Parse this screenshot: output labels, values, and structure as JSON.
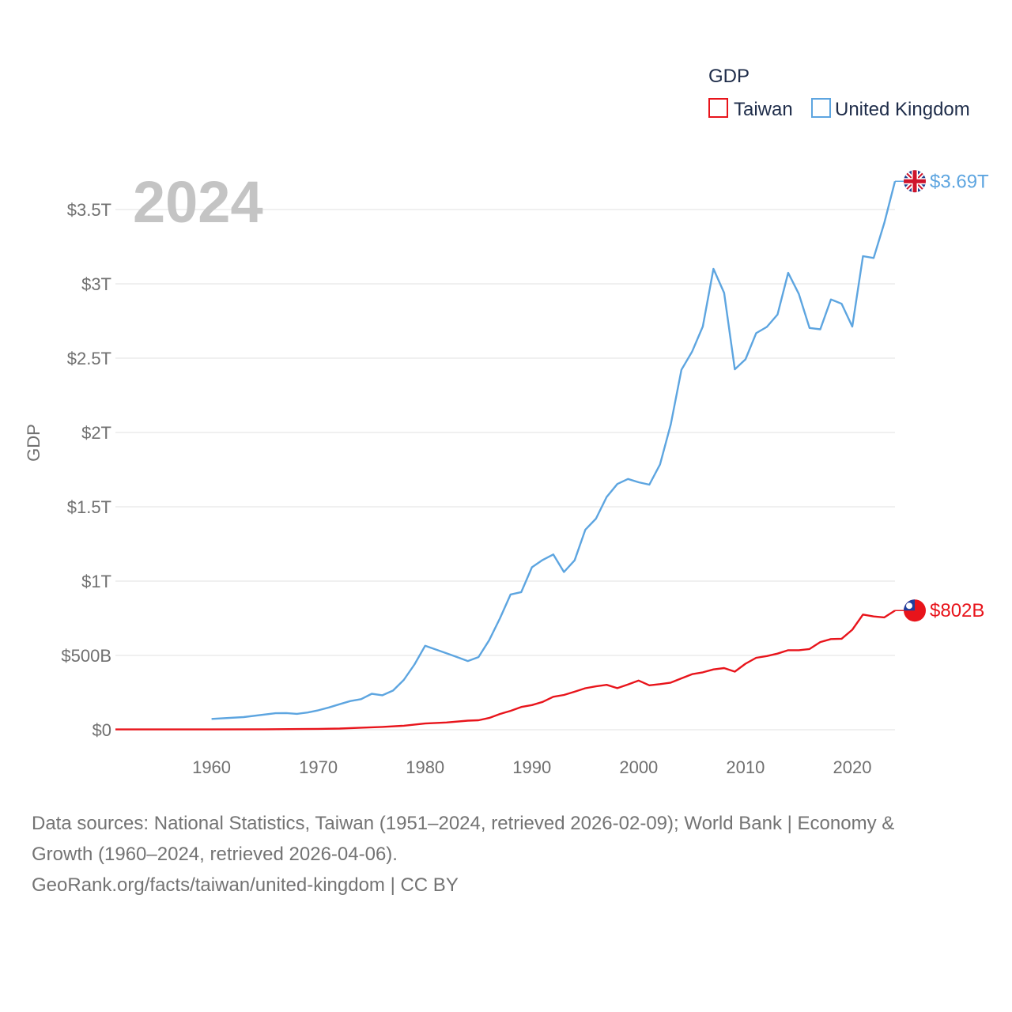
{
  "chart_data": {
    "type": "line",
    "title": "",
    "ylabel": "GDP",
    "xlabel": "",
    "year_label": "2024",
    "legend_title": "GDP",
    "legend_position": "top-right",
    "xlim": [
      1951,
      2024
    ],
    "ylim": [
      0,
      3.5
    ],
    "y_unit": "trillion USD",
    "y_ticks": [
      {
        "value": 0,
        "label": "$0"
      },
      {
        "value": 0.5,
        "label": "$500B"
      },
      {
        "value": 1,
        "label": "$1T"
      },
      {
        "value": 1.5,
        "label": "$1.5T"
      },
      {
        "value": 2,
        "label": "$2T"
      },
      {
        "value": 2.5,
        "label": "$2.5T"
      },
      {
        "value": 3,
        "label": "$3T"
      },
      {
        "value": 3.5,
        "label": "$3.5T"
      }
    ],
    "x_ticks": [
      {
        "value": 1960,
        "label": "1960"
      },
      {
        "value": 1970,
        "label": "1970"
      },
      {
        "value": 1980,
        "label": "1980"
      },
      {
        "value": 1990,
        "label": "1990"
      },
      {
        "value": 2000,
        "label": "2000"
      },
      {
        "value": 2010,
        "label": "2010"
      },
      {
        "value": 2020,
        "label": "2020"
      }
    ],
    "grid": true,
    "series": [
      {
        "name": "Taiwan",
        "color": "#e8141b",
        "end_label": "$802B",
        "flag_icon": "taiwan-flag-icon",
        "x": [
          1951,
          1955,
          1960,
          1965,
          1970,
          1972,
          1974,
          1976,
          1978,
          1980,
          1982,
          1984,
          1985,
          1986,
          1987,
          1988,
          1989,
          1990,
          1991,
          1992,
          1993,
          1994,
          1995,
          1996,
          1997,
          1998,
          1999,
          2000,
          2001,
          2002,
          2003,
          2004,
          2005,
          2006,
          2007,
          2008,
          2009,
          2010,
          2011,
          2012,
          2013,
          2014,
          2015,
          2016,
          2017,
          2018,
          2019,
          2020,
          2021,
          2022,
          2023,
          2024
        ],
        "y": [
          0.002,
          0.002,
          0.002,
          0.003,
          0.006,
          0.008,
          0.014,
          0.019,
          0.027,
          0.042,
          0.049,
          0.061,
          0.064,
          0.079,
          0.106,
          0.127,
          0.153,
          0.166,
          0.187,
          0.222,
          0.234,
          0.256,
          0.279,
          0.292,
          0.302,
          0.28,
          0.305,
          0.331,
          0.299,
          0.307,
          0.317,
          0.346,
          0.374,
          0.386,
          0.406,
          0.415,
          0.391,
          0.444,
          0.484,
          0.496,
          0.512,
          0.535,
          0.535,
          0.543,
          0.59,
          0.61,
          0.612,
          0.673,
          0.775,
          0.762,
          0.756,
          0.802
        ]
      },
      {
        "name": "United Kingdom",
        "color": "#5da5e0",
        "end_label": "$3.69T",
        "flag_icon": "uk-flag-icon",
        "x": [
          1960,
          1963,
          1966,
          1967,
          1968,
          1969,
          1970,
          1971,
          1972,
          1973,
          1974,
          1975,
          1976,
          1977,
          1978,
          1979,
          1980,
          1981,
          1982,
          1983,
          1984,
          1985,
          1986,
          1987,
          1988,
          1989,
          1990,
          1991,
          1992,
          1993,
          1994,
          1995,
          1996,
          1997,
          1998,
          1999,
          2000,
          2001,
          2002,
          2003,
          2004,
          2005,
          2006,
          2007,
          2008,
          2009,
          2010,
          2011,
          2012,
          2013,
          2014,
          2015,
          2016,
          2017,
          2018,
          2019,
          2020,
          2021,
          2022,
          2023,
          2024
        ],
        "y": [
          0.073,
          0.085,
          0.111,
          0.112,
          0.107,
          0.116,
          0.131,
          0.15,
          0.172,
          0.193,
          0.206,
          0.242,
          0.232,
          0.264,
          0.335,
          0.439,
          0.565,
          0.54,
          0.515,
          0.489,
          0.462,
          0.489,
          0.602,
          0.748,
          0.91,
          0.926,
          1.093,
          1.142,
          1.179,
          1.061,
          1.14,
          1.345,
          1.42,
          1.566,
          1.653,
          1.687,
          1.665,
          1.649,
          1.785,
          2.054,
          2.422,
          2.544,
          2.713,
          3.101,
          2.939,
          2.425,
          2.492,
          2.668,
          2.71,
          2.793,
          3.074,
          2.932,
          2.703,
          2.694,
          2.895,
          2.866,
          2.712,
          3.186,
          3.174,
          3.41,
          3.69
        ]
      }
    ]
  },
  "sources": {
    "line1": "Data sources: National Statistics, Taiwan (1951–2024, retrieved 2026-02-09); World Bank | Economy &",
    "line2": "Growth (1960–2024, retrieved 2026-04-06).",
    "line3": "GeoRank.org/facts/taiwan/united-kingdom | CC BY"
  }
}
